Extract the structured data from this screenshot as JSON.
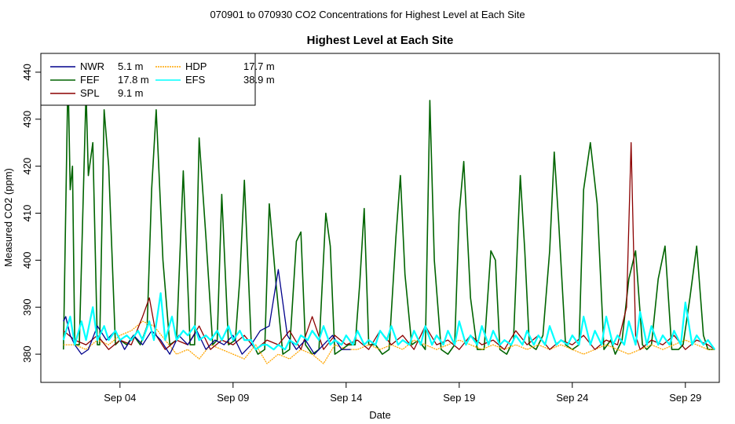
{
  "chart_data": {
    "type": "line",
    "suptitle": "070901  to  070930 CO2 Concentrations for Highest Level at Each Site",
    "title": "Highest Level at Each Site",
    "xlabel": "Date",
    "ylabel": "Measured CO2 (ppm)",
    "xlim": [
      0.5,
      30.5
    ],
    "ylim": [
      374,
      444
    ],
    "x_ticks": [
      {
        "label": "Sep 04",
        "day": 4
      },
      {
        "label": "Sep 09",
        "day": 9
      },
      {
        "label": "Sep 14",
        "day": 14
      },
      {
        "label": "Sep 19",
        "day": 19
      },
      {
        "label": "Sep 24",
        "day": 24
      },
      {
        "label": "Sep 29",
        "day": 29
      }
    ],
    "y_ticks": [
      380,
      390,
      400,
      410,
      420,
      430,
      440
    ],
    "legend_position": "top-left",
    "series": [
      {
        "name": "NWR",
        "height": "5.1 m",
        "color": "#00008b",
        "x": [
          1.5,
          1.6,
          1.8,
          2.0,
          2.3,
          2.6,
          3.0,
          3.4,
          3.8,
          4.2,
          4.6,
          5.0,
          5.4,
          5.8,
          6.2,
          6.6,
          7.0,
          7.4,
          7.8,
          8.2,
          8.6,
          9.0,
          9.4,
          9.8,
          10.2,
          10.6,
          11.0,
          11.4,
          11.8,
          12.2,
          12.6,
          13.0,
          13.4,
          13.8,
          14.2
        ],
        "y": [
          387,
          388,
          384,
          382,
          380,
          381,
          386,
          383,
          385,
          381,
          384,
          382,
          385,
          383,
          380,
          384,
          382,
          385,
          381,
          383,
          382,
          384,
          380,
          382,
          385,
          386,
          398,
          384,
          381,
          383,
          380,
          382,
          384,
          381,
          381
        ]
      },
      {
        "name": "FEF",
        "height": "17.8 m",
        "color": "#006400",
        "x": [
          1.5,
          1.7,
          1.8,
          1.9,
          2.0,
          2.2,
          2.5,
          2.6,
          2.8,
          3.0,
          3.1,
          3.3,
          3.5,
          3.8,
          4.0,
          4.3,
          4.6,
          4.9,
          5.2,
          5.4,
          5.6,
          5.9,
          6.2,
          6.5,
          6.8,
          7.1,
          7.3,
          7.5,
          7.8,
          8.1,
          8.3,
          8.5,
          8.8,
          9.1,
          9.3,
          9.5,
          9.8,
          10.1,
          10.4,
          10.6,
          10.9,
          11.2,
          11.5,
          11.8,
          12.0,
          12.2,
          12.5,
          12.8,
          13.1,
          13.3,
          13.5,
          13.8,
          14.1,
          14.4,
          14.6,
          14.8,
          15.0,
          15.3,
          15.6,
          15.9,
          16.2,
          16.4,
          16.6,
          16.9,
          17.2,
          17.5,
          17.7,
          17.9,
          18.2,
          18.5,
          18.8,
          19.0,
          19.2,
          19.5,
          19.8,
          20.1,
          20.4,
          20.6,
          20.8,
          21.1,
          21.4,
          21.7,
          21.9,
          22.1,
          22.4,
          22.7,
          23.0,
          23.2,
          23.4,
          23.7,
          24.0,
          24.3,
          24.5,
          24.8,
          25.1,
          25.4,
          25.7,
          25.9,
          26.2,
          26.5,
          26.8,
          27.1,
          27.3,
          27.5,
          27.8,
          28.1,
          28.4,
          28.7,
          28.9,
          29.2,
          29.5,
          29.8,
          30.0,
          30.3
        ],
        "y": [
          381,
          440,
          415,
          420,
          382,
          382,
          436,
          418,
          425,
          382,
          382,
          432,
          420,
          382,
          383,
          382,
          384,
          382,
          386,
          415,
          432,
          400,
          382,
          383,
          419,
          382,
          382,
          426,
          405,
          382,
          383,
          414,
          382,
          383,
          396,
          417,
          383,
          380,
          381,
          412,
          395,
          380,
          381,
          404,
          406,
          382,
          380,
          381,
          410,
          403,
          380,
          381,
          382,
          382,
          395,
          411,
          382,
          382,
          380,
          381,
          405,
          418,
          397,
          382,
          383,
          381,
          434,
          400,
          381,
          380,
          382,
          410,
          421,
          392,
          381,
          381,
          402,
          400,
          381,
          380,
          383,
          418,
          402,
          382,
          381,
          384,
          402,
          423,
          408,
          382,
          381,
          382,
          415,
          425,
          412,
          381,
          383,
          380,
          383,
          396,
          402,
          382,
          381,
          382,
          396,
          403,
          381,
          381,
          382,
          392,
          403,
          384,
          381,
          381
        ]
      },
      {
        "name": "SPL",
        "height": "9.1 m",
        "color": "#8b0000",
        "x": [
          1.5,
          2.0,
          2.5,
          3.0,
          3.5,
          4.0,
          4.5,
          5.0,
          5.3,
          5.6,
          6.0,
          6.5,
          7.0,
          7.5,
          8.0,
          8.5,
          9.0,
          9.5,
          10.0,
          10.5,
          11.0,
          11.5,
          12.0,
          12.5,
          13.0,
          13.5,
          14.0,
          14.5,
          15.0,
          15.5,
          16.0,
          16.5,
          17.0,
          17.5,
          18.0,
          18.5,
          19.0,
          19.5,
          20.0,
          20.5,
          21.0,
          21.5,
          22.0,
          22.5,
          23.0,
          23.5,
          24.0,
          24.5,
          25.0,
          25.5,
          26.0,
          26.4,
          26.6,
          26.8,
          27.0,
          27.5,
          28.0,
          28.5,
          29.0,
          29.5,
          30.0,
          30.3
        ],
        "y": [
          385,
          383,
          382,
          384,
          381,
          383,
          382,
          388,
          392,
          384,
          381,
          383,
          382,
          386,
          381,
          383,
          382,
          384,
          381,
          383,
          382,
          385,
          381,
          388,
          381,
          384,
          382,
          383,
          381,
          385,
          382,
          384,
          381,
          386,
          382,
          383,
          381,
          384,
          382,
          383,
          381,
          385,
          382,
          384,
          381,
          383,
          382,
          384,
          381,
          383,
          382,
          390,
          425,
          384,
          381,
          383,
          382,
          384,
          381,
          383,
          382,
          381
        ]
      },
      {
        "name": "HDP",
        "height": "17.7 m",
        "color": "#ffa500",
        "x": [
          1.5,
          2.0,
          2.5,
          3.0,
          3.5,
          4.0,
          4.5,
          5.0,
          5.5,
          6.0,
          6.5,
          7.0,
          7.5,
          8.0,
          8.5,
          9.0,
          9.5,
          10.0,
          10.5,
          11.0,
          11.5,
          12.0,
          12.5,
          13.0,
          13.5,
          14.0,
          14.5,
          15.0,
          15.5,
          16.0,
          16.5,
          17.0,
          17.5,
          18.0,
          18.5,
          19.0,
          19.5,
          20.0,
          20.5,
          21.0,
          21.5,
          22.0,
          22.5,
          23.0,
          23.5,
          24.0,
          24.5,
          25.0,
          25.5,
          26.0,
          26.5,
          27.0,
          27.5,
          28.0,
          28.5,
          29.0,
          29.5,
          30.0,
          30.3
        ],
        "y": [
          382,
          382,
          381,
          383,
          382,
          384,
          385,
          387,
          386,
          383,
          380,
          381,
          379,
          382,
          381,
          380,
          379,
          382,
          378,
          380,
          379,
          381,
          380,
          378,
          382,
          381,
          381,
          382,
          381,
          382,
          381,
          383,
          382,
          381,
          382,
          383,
          382,
          381,
          382,
          381,
          382,
          381,
          382,
          381,
          382,
          381,
          380,
          381,
          382,
          381,
          380,
          381,
          382,
          381,
          382,
          383,
          382,
          381,
          381
        ]
      },
      {
        "name": "EFS",
        "height": "38.9 m",
        "color": "#00ffff",
        "x": [
          1.5,
          1.8,
          2.0,
          2.3,
          2.5,
          2.8,
          3.0,
          3.3,
          3.5,
          3.8,
          4.0,
          4.3,
          4.5,
          4.8,
          5.0,
          5.3,
          5.5,
          5.8,
          6.0,
          6.3,
          6.5,
          6.8,
          7.0,
          7.3,
          7.5,
          7.8,
          8.0,
          8.3,
          8.5,
          8.8,
          9.0,
          9.3,
          9.5,
          9.8,
          10.0,
          10.3,
          10.5,
          10.8,
          11.0,
          11.3,
          11.5,
          11.8,
          12.0,
          12.3,
          12.5,
          12.8,
          13.0,
          13.3,
          13.5,
          13.8,
          14.0,
          14.3,
          14.5,
          14.8,
          15.0,
          15.3,
          15.5,
          15.8,
          16.0,
          16.3,
          16.5,
          16.8,
          17.0,
          17.3,
          17.5,
          17.8,
          18.0,
          18.3,
          18.5,
          18.8,
          19.0,
          19.3,
          19.5,
          19.8,
          20.0,
          20.3,
          20.5,
          20.8,
          21.0,
          21.3,
          21.5,
          21.8,
          22.0,
          22.3,
          22.5,
          22.8,
          23.0,
          23.3,
          23.5,
          23.8,
          24.0,
          24.3,
          24.5,
          24.8,
          25.0,
          25.3,
          25.5,
          25.8,
          26.0,
          26.3,
          26.5,
          26.8,
          27.0,
          27.3,
          27.5,
          27.8,
          28.0,
          28.3,
          28.5,
          28.8,
          29.0,
          29.3,
          29.5,
          29.8,
          30.0,
          30.3
        ],
        "y": [
          383,
          388,
          382,
          387,
          383,
          390,
          383,
          386,
          383,
          385,
          383,
          384,
          383,
          385,
          383,
          387,
          383,
          393,
          383,
          388,
          383,
          385,
          384,
          386,
          383,
          384,
          383,
          385,
          383,
          386,
          383,
          385,
          383,
          383,
          381,
          382,
          382,
          381,
          382,
          381,
          383,
          382,
          384,
          383,
          385,
          383,
          386,
          382,
          383,
          382,
          384,
          382,
          385,
          382,
          383,
          382,
          385,
          383,
          386,
          382,
          383,
          382,
          385,
          382,
          386,
          382,
          384,
          382,
          385,
          382,
          387,
          382,
          384,
          382,
          386,
          382,
          385,
          382,
          383,
          382,
          384,
          382,
          385,
          382,
          384,
          382,
          386,
          382,
          383,
          382,
          384,
          382,
          388,
          382,
          385,
          382,
          388,
          382,
          384,
          382,
          387,
          382,
          389,
          382,
          386,
          382,
          384,
          382,
          385,
          382,
          391,
          382,
          384,
          382,
          383,
          381
        ]
      }
    ]
  }
}
